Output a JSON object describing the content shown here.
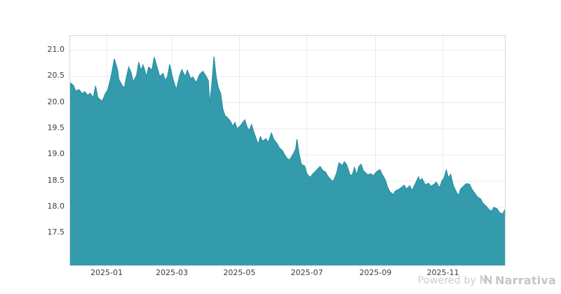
{
  "footer": {
    "powered_by": "Powered by",
    "brand": "Narrativa"
  },
  "colors": {
    "area_fill": "#339bab",
    "area_line": "#2b91a3",
    "grid": "#eaeaea",
    "plot_border": "#d7d7d7",
    "tick_label": "#3c3c3c",
    "watermark": "#c9c9c9",
    "background": "#ffffff"
  },
  "chart_data": {
    "type": "area",
    "title": "",
    "xlabel": "",
    "ylabel": "",
    "grid": true,
    "legend": false,
    "y_ticks": [
      17.5,
      18.0,
      18.5,
      19.0,
      19.5,
      20.0,
      20.5,
      21.0
    ],
    "ylim": [
      16.89,
      21.28
    ],
    "x_tick_labels": [
      "2025-01",
      "2025-03",
      "2025-05",
      "2025-07",
      "2025-09",
      "2025-11"
    ],
    "x_tick_dates": [
      "2025-01-01",
      "2025-03-01",
      "2025-05-01",
      "2025-07-01",
      "2025-09-01",
      "2025-11-01"
    ],
    "xlim": [
      "2024-11-29",
      "2025-12-27"
    ],
    "series": [
      {
        "name": "value",
        "points": [
          [
            "2024-11-29",
            20.38
          ],
          [
            "2024-12-02",
            20.33
          ],
          [
            "2024-12-04",
            20.22
          ],
          [
            "2024-12-07",
            20.25
          ],
          [
            "2024-12-10",
            20.17
          ],
          [
            "2024-12-12",
            20.21
          ],
          [
            "2024-12-15",
            20.14
          ],
          [
            "2024-12-17",
            20.18
          ],
          [
            "2024-12-20",
            20.1
          ],
          [
            "2024-12-22",
            20.32
          ],
          [
            "2024-12-24",
            20.1
          ],
          [
            "2024-12-26",
            20.06
          ],
          [
            "2024-12-28",
            20.03
          ],
          [
            "2024-12-31",
            20.18
          ],
          [
            "2025-01-02",
            20.24
          ],
          [
            "2025-01-05",
            20.5
          ],
          [
            "2025-01-08",
            20.84
          ],
          [
            "2025-01-11",
            20.62
          ],
          [
            "2025-01-12",
            20.45
          ],
          [
            "2025-01-15",
            20.33
          ],
          [
            "2025-01-17",
            20.28
          ],
          [
            "2025-01-19",
            20.5
          ],
          [
            "2025-01-21",
            20.68
          ],
          [
            "2025-01-23",
            20.58
          ],
          [
            "2025-01-25",
            20.4
          ],
          [
            "2025-01-28",
            20.52
          ],
          [
            "2025-01-30",
            20.77
          ],
          [
            "2025-02-01",
            20.62
          ],
          [
            "2025-02-03",
            20.72
          ],
          [
            "2025-02-06",
            20.5
          ],
          [
            "2025-02-08",
            20.68
          ],
          [
            "2025-02-11",
            20.62
          ],
          [
            "2025-02-13",
            20.87
          ],
          [
            "2025-02-16",
            20.65
          ],
          [
            "2025-02-18",
            20.5
          ],
          [
            "2025-02-21",
            20.56
          ],
          [
            "2025-02-23",
            20.42
          ],
          [
            "2025-02-25",
            20.5
          ],
          [
            "2025-02-27",
            20.73
          ],
          [
            "2025-03-02",
            20.45
          ],
          [
            "2025-03-05",
            20.25
          ],
          [
            "2025-03-08",
            20.52
          ],
          [
            "2025-03-10",
            20.63
          ],
          [
            "2025-03-13",
            20.5
          ],
          [
            "2025-03-15",
            20.62
          ],
          [
            "2025-03-18",
            20.46
          ],
          [
            "2025-03-20",
            20.49
          ],
          [
            "2025-03-23",
            20.38
          ],
          [
            "2025-03-26",
            20.54
          ],
          [
            "2025-03-29",
            20.6
          ],
          [
            "2025-04-01",
            20.5
          ],
          [
            "2025-04-03",
            20.42
          ],
          [
            "2025-04-04",
            19.98
          ],
          [
            "2025-04-06",
            20.32
          ],
          [
            "2025-04-08",
            20.88
          ],
          [
            "2025-04-10",
            20.5
          ],
          [
            "2025-04-12",
            20.28
          ],
          [
            "2025-04-14",
            20.18
          ],
          [
            "2025-04-16",
            19.88
          ],
          [
            "2025-04-18",
            19.75
          ],
          [
            "2025-04-20",
            19.72
          ],
          [
            "2025-04-23",
            19.64
          ],
          [
            "2025-04-25",
            19.55
          ],
          [
            "2025-04-27",
            19.62
          ],
          [
            "2025-04-29",
            19.5
          ],
          [
            "2025-05-02",
            19.56
          ],
          [
            "2025-05-04",
            19.62
          ],
          [
            "2025-05-06",
            19.67
          ],
          [
            "2025-05-08",
            19.53
          ],
          [
            "2025-05-10",
            19.47
          ],
          [
            "2025-05-12",
            19.58
          ],
          [
            "2025-05-14",
            19.44
          ],
          [
            "2025-05-16",
            19.32
          ],
          [
            "2025-05-18",
            19.2
          ],
          [
            "2025-05-20",
            19.35
          ],
          [
            "2025-05-22",
            19.26
          ],
          [
            "2025-05-25",
            19.31
          ],
          [
            "2025-05-27",
            19.24
          ],
          [
            "2025-05-30",
            19.42
          ],
          [
            "2025-06-01",
            19.3
          ],
          [
            "2025-06-04",
            19.22
          ],
          [
            "2025-06-06",
            19.14
          ],
          [
            "2025-06-09",
            19.08
          ],
          [
            "2025-06-11",
            19.0
          ],
          [
            "2025-06-13",
            18.94
          ],
          [
            "2025-06-15",
            18.9
          ],
          [
            "2025-06-17",
            18.96
          ],
          [
            "2025-06-19",
            19.03
          ],
          [
            "2025-06-21",
            19.12
          ],
          [
            "2025-06-22",
            19.3
          ],
          [
            "2025-06-24",
            19.02
          ],
          [
            "2025-06-26",
            18.82
          ],
          [
            "2025-06-29",
            18.79
          ],
          [
            "2025-07-01",
            18.64
          ],
          [
            "2025-07-04",
            18.57
          ],
          [
            "2025-07-06",
            18.63
          ],
          [
            "2025-07-09",
            18.69
          ],
          [
            "2025-07-11",
            18.74
          ],
          [
            "2025-07-13",
            18.78
          ],
          [
            "2025-07-15",
            18.71
          ],
          [
            "2025-07-18",
            18.67
          ],
          [
            "2025-07-20",
            18.59
          ],
          [
            "2025-07-23",
            18.52
          ],
          [
            "2025-07-25",
            18.5
          ],
          [
            "2025-07-28",
            18.66
          ],
          [
            "2025-07-30",
            18.85
          ],
          [
            "2025-08-02",
            18.8
          ],
          [
            "2025-08-04",
            18.87
          ],
          [
            "2025-08-06",
            18.81
          ],
          [
            "2025-08-09",
            18.62
          ],
          [
            "2025-08-11",
            18.61
          ],
          [
            "2025-08-13",
            18.76
          ],
          [
            "2025-08-15",
            18.62
          ],
          [
            "2025-08-17",
            18.78
          ],
          [
            "2025-08-19",
            18.82
          ],
          [
            "2025-08-21",
            18.7
          ],
          [
            "2025-08-23",
            18.66
          ],
          [
            "2025-08-25",
            18.62
          ],
          [
            "2025-08-28",
            18.64
          ],
          [
            "2025-08-30",
            18.6
          ],
          [
            "2025-09-02",
            18.68
          ],
          [
            "2025-09-05",
            18.72
          ],
          [
            "2025-09-07",
            18.63
          ],
          [
            "2025-09-10",
            18.52
          ],
          [
            "2025-09-12",
            18.38
          ],
          [
            "2025-09-14",
            18.3
          ],
          [
            "2025-09-17",
            18.24
          ],
          [
            "2025-09-19",
            18.31
          ],
          [
            "2025-09-22",
            18.34
          ],
          [
            "2025-09-24",
            18.37
          ],
          [
            "2025-09-27",
            18.42
          ],
          [
            "2025-09-29",
            18.35
          ],
          [
            "2025-10-02",
            18.41
          ],
          [
            "2025-10-04",
            18.32
          ],
          [
            "2025-10-07",
            18.45
          ],
          [
            "2025-10-10",
            18.58
          ],
          [
            "2025-10-11",
            18.5
          ],
          [
            "2025-10-13",
            18.55
          ],
          [
            "2025-10-16",
            18.43
          ],
          [
            "2025-10-19",
            18.46
          ],
          [
            "2025-10-21",
            18.4
          ],
          [
            "2025-10-24",
            18.44
          ],
          [
            "2025-10-26",
            18.48
          ],
          [
            "2025-10-29",
            18.37
          ],
          [
            "2025-10-31",
            18.5
          ],
          [
            "2025-11-02",
            18.56
          ],
          [
            "2025-11-04",
            18.71
          ],
          [
            "2025-11-06",
            18.56
          ],
          [
            "2025-11-08",
            18.63
          ],
          [
            "2025-11-10",
            18.44
          ],
          [
            "2025-11-12",
            18.34
          ],
          [
            "2025-11-15",
            18.22
          ],
          [
            "2025-11-17",
            18.35
          ],
          [
            "2025-11-20",
            18.41
          ],
          [
            "2025-11-22",
            18.45
          ],
          [
            "2025-11-25",
            18.44
          ],
          [
            "2025-11-27",
            18.35
          ],
          [
            "2025-11-30",
            18.26
          ],
          [
            "2025-12-02",
            18.2
          ],
          [
            "2025-12-05",
            18.16
          ],
          [
            "2025-12-07",
            18.08
          ],
          [
            "2025-12-10",
            18.02
          ],
          [
            "2025-12-12",
            17.97
          ],
          [
            "2025-12-15",
            17.92
          ],
          [
            "2025-12-17",
            18.0
          ],
          [
            "2025-12-20",
            17.97
          ],
          [
            "2025-12-22",
            17.9
          ],
          [
            "2025-12-25",
            17.87
          ],
          [
            "2025-12-27",
            17.96
          ]
        ]
      }
    ]
  }
}
